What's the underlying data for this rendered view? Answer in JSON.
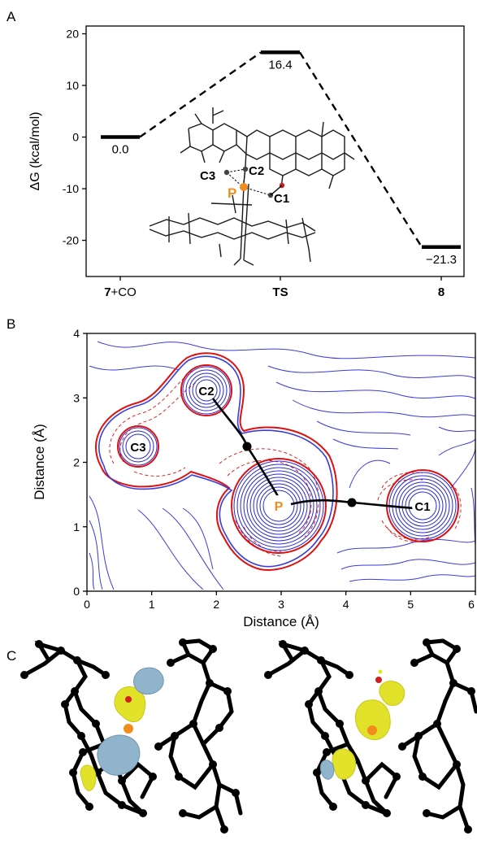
{
  "panels": {
    "a": {
      "letter": "A",
      "ylabel": "ΔG (kcal/mol)",
      "yticks": [
        20,
        10,
        0,
        -10,
        -20
      ],
      "ylim": [
        -27,
        21.5
      ],
      "levels": [
        {
          "label": "7+CO",
          "label_bold": "7",
          "label_rest": "+CO",
          "value": 0.0,
          "value_text": "0.0"
        },
        {
          "label": "TS",
          "value": 16.4,
          "value_text": "16.4"
        },
        {
          "label": "8",
          "value": -21.3,
          "value_text": "−21.3"
        }
      ],
      "atoms": {
        "c3": "C3",
        "c2": "C2",
        "p": "P",
        "c1": "C1"
      }
    },
    "b": {
      "letter": "B",
      "xlabel": "Distance (Å)",
      "ylabel": "Distance (Å)",
      "xlim": [
        0,
        6
      ],
      "ylim": [
        0,
        4
      ],
      "xticks": [
        0,
        1,
        2,
        3,
        4,
        5,
        6
      ],
      "yticks": [
        0,
        1,
        2,
        3,
        4
      ],
      "atoms": {
        "c2": "C2",
        "c3": "C3",
        "p": "P",
        "c1": "C1"
      }
    },
    "c": {
      "letter": "C"
    }
  },
  "colors": {
    "phosphorus": "#f28c1c",
    "contour_positive": "#3333dd",
    "contour_negative": "#dd1111",
    "isosurface_yellow": "#e2e22a",
    "isosurface_blue": "#8fb4cc",
    "molecule": "#000000"
  },
  "chart_data": [
    {
      "type": "line",
      "title": "",
      "xlabel": "",
      "ylabel": "ΔG (kcal/mol)",
      "categories": [
        "7+CO",
        "TS",
        "8"
      ],
      "values": [
        0.0,
        16.4,
        -21.3
      ],
      "ylim": [
        -27,
        21.5
      ],
      "yticks": [
        -20,
        -10,
        0,
        10,
        20
      ]
    },
    {
      "type": "heatmap",
      "title": "",
      "xlabel": "Distance (Å)",
      "ylabel": "Distance (Å)",
      "xlim": [
        0,
        6
      ],
      "ylim": [
        0,
        4
      ],
      "points": [
        {
          "name": "P",
          "x": 2.95,
          "y": 1.3
        },
        {
          "name": "C1",
          "x": 5.2,
          "y": 1.25
        },
        {
          "name": "C2",
          "x": 1.85,
          "y": 2.95
        },
        {
          "name": "C3",
          "x": 0.8,
          "y": 2.2
        }
      ]
    }
  ]
}
